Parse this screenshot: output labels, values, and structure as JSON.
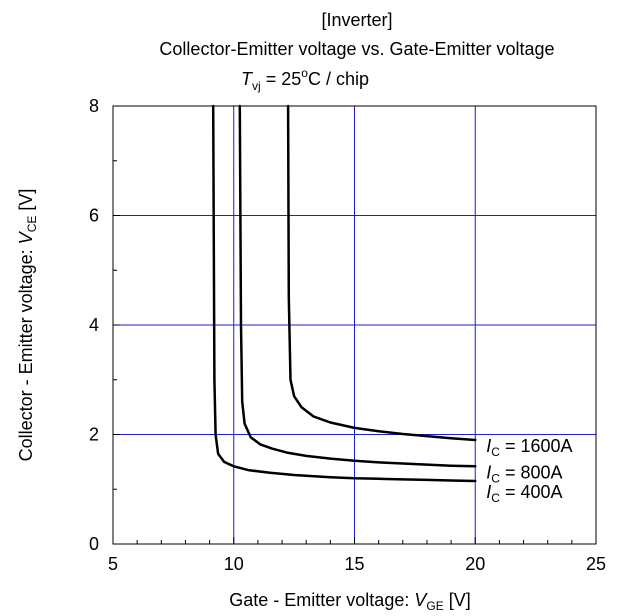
{
  "chart_data": {
    "type": "line",
    "title_line1": "[Inverter]",
    "title_line2": "Collector-Emitter voltage vs. Gate-Emitter voltage",
    "title_line3": {
      "sym": "T",
      "sub": "vj",
      "eq": " = 25",
      "sup": "o",
      "rest": "C / chip"
    },
    "xlabel": {
      "text": "Gate - Emitter voltage:  ",
      "sym": "V",
      "sub": "GE",
      "unit": " [V]"
    },
    "ylabel": {
      "text": "Collector - Emitter voltage:  ",
      "sym": "V",
      "sub": "CE",
      "unit": " [V]"
    },
    "xlim": [
      5,
      25
    ],
    "ylim": [
      0,
      8
    ],
    "xticks": [
      5,
      10,
      15,
      20,
      25
    ],
    "yticks": [
      0,
      2,
      4,
      6,
      8
    ],
    "xminor": 1,
    "yminor": 1,
    "grid": true,
    "grid_color": "#1f1fd0",
    "line_color": "#000000",
    "series": [
      {
        "name": {
          "sym": "I",
          "sub": "C",
          "rest": " = 1600A"
        },
        "x": [
          12.25,
          12.28,
          12.35,
          12.5,
          12.8,
          13.3,
          14,
          15,
          16,
          17,
          18,
          19,
          20
        ],
        "y": [
          8.0,
          4.5,
          3.0,
          2.7,
          2.5,
          2.33,
          2.22,
          2.12,
          2.06,
          2.01,
          1.97,
          1.93,
          1.9
        ]
      },
      {
        "name": {
          "sym": "I",
          "sub": "C",
          "rest": " = 800A"
        },
        "x": [
          10.25,
          10.3,
          10.35,
          10.45,
          10.7,
          11.1,
          11.6,
          12.2,
          13,
          14,
          15,
          16,
          17,
          18,
          19,
          20
        ],
        "y": [
          8.0,
          4.0,
          2.6,
          2.2,
          1.95,
          1.82,
          1.74,
          1.67,
          1.61,
          1.56,
          1.52,
          1.49,
          1.47,
          1.45,
          1.43,
          1.42
        ]
      },
      {
        "name": {
          "sym": "I",
          "sub": "C",
          "rest": " = 400A"
        },
        "x": [
          9.15,
          9.2,
          9.25,
          9.35,
          9.6,
          10,
          10.6,
          11.5,
          12.5,
          14,
          15,
          16,
          17,
          18,
          19,
          20
        ],
        "y": [
          8.0,
          3.0,
          2.0,
          1.65,
          1.5,
          1.42,
          1.35,
          1.3,
          1.26,
          1.22,
          1.2,
          1.19,
          1.18,
          1.17,
          1.16,
          1.15
        ]
      }
    ]
  }
}
